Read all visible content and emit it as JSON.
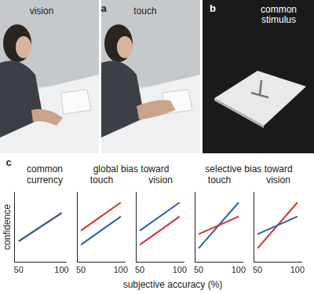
{
  "figure": {
    "a": {
      "label": "a",
      "images": [
        "vision",
        "touch"
      ]
    },
    "b": {
      "label": "b",
      "title": "common stimulus"
    },
    "c": {
      "label": "c",
      "xlabel": "subjective accuracy (%)"
    }
  },
  "chart_data": [
    {
      "type": "line",
      "title": "common",
      "subtitle": "currency",
      "ylabel": "confidence",
      "x": [
        50,
        100
      ],
      "xlim": [
        45,
        105
      ],
      "xticks": [
        50,
        100
      ],
      "ylim": [
        0,
        1
      ],
      "grid": false,
      "tick_labels": "x",
      "series": [
        {
          "color": "#2b5fb4",
          "values": [
            0.3,
            0.7
          ]
        },
        {
          "color": "#d8312a",
          "values": [
            0.3,
            0.7
          ]
        }
      ]
    },
    {
      "type": "line",
      "title": "global bias toward",
      "subtitle": "touch",
      "x": [
        50,
        100
      ],
      "xlim": [
        45,
        105
      ],
      "xticks": [
        50,
        100
      ],
      "ylim": [
        0,
        1
      ],
      "grid": false,
      "tick_labels": "x",
      "series": [
        {
          "color": "#d8312a",
          "values": [
            0.45,
            0.85
          ]
        },
        {
          "color": "#2b5fb4",
          "values": [
            0.25,
            0.65
          ]
        }
      ]
    },
    {
      "type": "line",
      "subtitle": "vision",
      "x": [
        50,
        100
      ],
      "xlim": [
        45,
        105
      ],
      "xticks": [
        50,
        100
      ],
      "ylim": [
        0,
        1
      ],
      "grid": false,
      "tick_labels": "x",
      "series": [
        {
          "color": "#2b5fb4",
          "values": [
            0.45,
            0.85
          ]
        },
        {
          "color": "#d8312a",
          "values": [
            0.25,
            0.65
          ]
        }
      ]
    },
    {
      "type": "line",
      "title": "selective bias toward",
      "subtitle": "touch",
      "x": [
        50,
        100
      ],
      "xlim": [
        45,
        105
      ],
      "xticks": [
        50,
        100
      ],
      "ylim": [
        0,
        1
      ],
      "grid": false,
      "tick_labels": "x",
      "series": [
        {
          "color": "#d8312a",
          "values": [
            0.4,
            0.65
          ]
        },
        {
          "color": "#2b5fb4",
          "values": [
            0.2,
            0.85
          ]
        }
      ]
    },
    {
      "type": "line",
      "subtitle": "vision",
      "x": [
        50,
        100
      ],
      "xlim": [
        45,
        105
      ],
      "xticks": [
        50,
        100
      ],
      "ylim": [
        0,
        1
      ],
      "grid": false,
      "tick_labels": "x",
      "series": [
        {
          "color": "#2b5fb4",
          "values": [
            0.4,
            0.65
          ]
        },
        {
          "color": "#d8312a",
          "values": [
            0.2,
            0.85
          ]
        }
      ]
    }
  ]
}
